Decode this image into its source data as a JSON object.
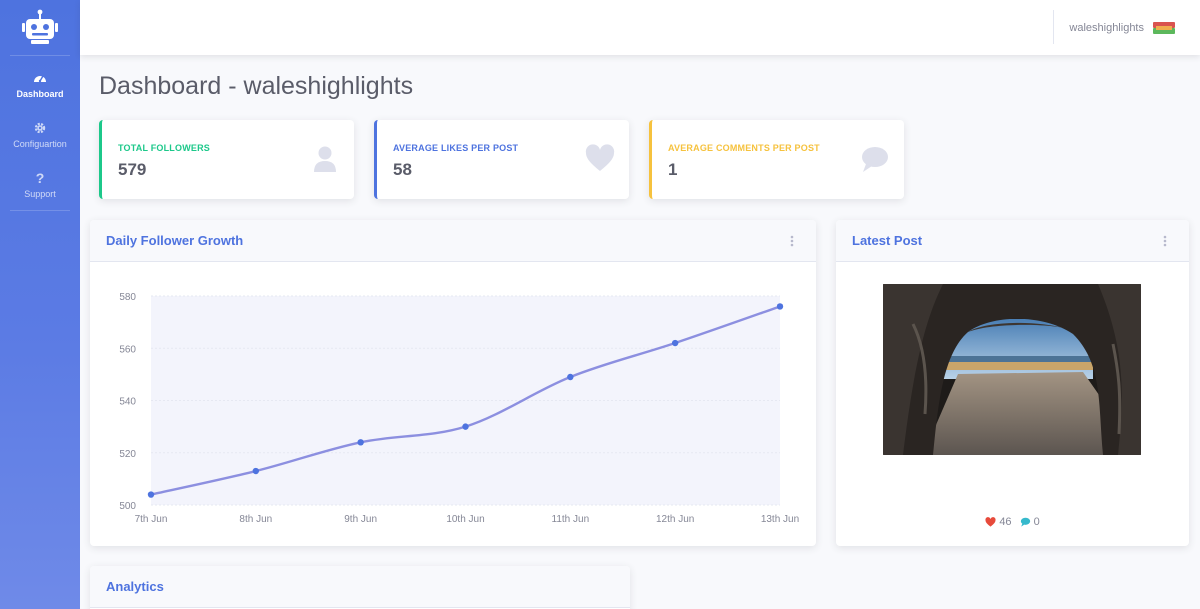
{
  "sidebar": {
    "items": [
      {
        "label": "Dashboard",
        "icon": "dashboard-icon"
      },
      {
        "label": "Configuartion",
        "icon": "gear-icon"
      },
      {
        "label": "Support",
        "icon": "question-icon"
      }
    ]
  },
  "topbar": {
    "username": "waleshighlights"
  },
  "page": {
    "title": "Dashboard - waleshighlights"
  },
  "stats": [
    {
      "label": "TOTAL FOLLOWERS",
      "value": "579",
      "color": "#1cc88a",
      "icon": "user-icon"
    },
    {
      "label": "AVERAGE LIKES PER POST",
      "value": "58",
      "color": "#4e73df",
      "icon": "heart-icon"
    },
    {
      "label": "AVERAGE COMMENTS PER POST",
      "value": "1",
      "color": "#f6c23e",
      "icon": "comment-icon"
    }
  ],
  "growth_card": {
    "title": "Daily Follower Growth"
  },
  "latest_post": {
    "title": "Latest Post",
    "likes": "46",
    "comments": "0"
  },
  "analytics_card": {
    "title": "Analytics"
  },
  "colors": {
    "primary": "#4e73df",
    "line": "#8c8fe0",
    "like": "#e74a3b",
    "comment": "#36b9cc"
  },
  "chart_data": {
    "type": "line",
    "categories": [
      "7th Jun",
      "8th Jun",
      "9th Jun",
      "10th Jun",
      "11th Jun",
      "12th Jun",
      "13th Jun"
    ],
    "series": [
      {
        "values": [
          504,
          513,
          524,
          530,
          549,
          562,
          576
        ]
      }
    ],
    "yticks": [
      500,
      520,
      540,
      560,
      580
    ],
    "ylim": [
      500,
      580
    ],
    "grid": true
  }
}
